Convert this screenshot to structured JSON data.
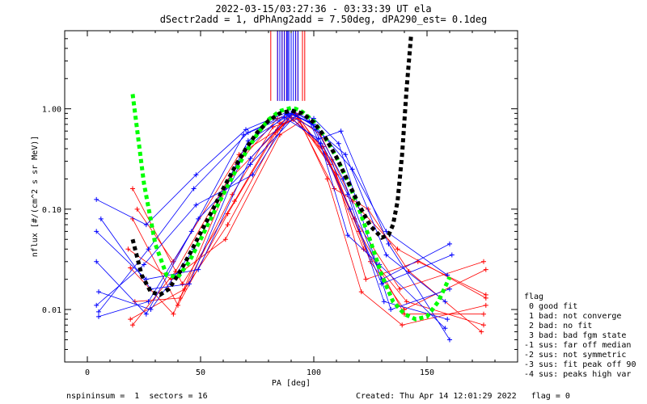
{
  "chart_data": {
    "type": "line",
    "title": "2022-03-15/03:27:36 - 03:33:39 UT ela",
    "subtitle": "dSectr2add = 1, dPhAng2add = 7.50deg, dPA290_est=    0.1deg",
    "xlabel": "PA [deg]",
    "ylabel": "nflux [#/(cm^2 s sr MeV)]",
    "xlim": [
      -10,
      190
    ],
    "ylim": [
      0.003,
      6
    ],
    "yscale": "log",
    "x_ticks": [
      0,
      50,
      100,
      150
    ],
    "x_tick_labels": [
      "0",
      "50",
      "100",
      "150"
    ],
    "y_ticks": [
      0.01,
      0.1,
      1.0
    ],
    "y_tick_labels": [
      "0.01",
      "0.10",
      "1.00"
    ],
    "colors": {
      "series_red": "#ff0000",
      "series_blue": "#0000ff",
      "fit_green": "#00ff00",
      "fit_black": "#000000",
      "axis": "#000000"
    },
    "series": [
      {
        "color": "#ff0000",
        "x": [
          20,
          42,
          65,
          85,
          92,
          105,
          120,
          140,
          175
        ],
        "values": [
          0.16,
          0.018,
          0.12,
          0.72,
          0.9,
          0.36,
          0.06,
          0.009,
          0.009
        ]
      },
      {
        "color": "#ff0000",
        "x": [
          20,
          40,
          62,
          84,
          93,
          107,
          122,
          141,
          175
        ],
        "values": [
          0.08,
          0.011,
          0.09,
          0.62,
          0.86,
          0.28,
          0.04,
          0.012,
          0.007
        ]
      },
      {
        "color": "#ff0000",
        "x": [
          19,
          38,
          63,
          83,
          90,
          108,
          123,
          146,
          176
        ],
        "values": [
          0.026,
          0.009,
          0.2,
          0.58,
          0.82,
          0.31,
          0.02,
          0.03,
          0.014
        ]
      },
      {
        "color": "#ff0000",
        "x": [
          21,
          41,
          64,
          82,
          91,
          104,
          118,
          138,
          175
        ],
        "values": [
          0.012,
          0.013,
          0.14,
          0.66,
          0.78,
          0.42,
          0.08,
          0.016,
          0.03
        ]
      },
      {
        "color": "#ff0000",
        "x": [
          18,
          37,
          61,
          85,
          94,
          106,
          121,
          139,
          176
        ],
        "values": [
          0.04,
          0.02,
          0.05,
          0.55,
          0.74,
          0.2,
          0.015,
          0.007,
          0.011
        ]
      },
      {
        "color": "#ff0000",
        "x": [
          20,
          39,
          66,
          84,
          92,
          109,
          124,
          142,
          174
        ],
        "values": [
          0.007,
          0.024,
          0.28,
          0.8,
          0.88,
          0.16,
          0.1,
          0.024,
          0.006
        ]
      },
      {
        "color": "#ff0000",
        "x": [
          19,
          43,
          62,
          86,
          93,
          103,
          117,
          137,
          176
        ],
        "values": [
          0.008,
          0.016,
          0.07,
          0.7,
          0.8,
          0.55,
          0.12,
          0.04,
          0.013
        ]
      },
      {
        "color": "#ff0000",
        "x": [
          22,
          38,
          67,
          85,
          91,
          110,
          125,
          140,
          176
        ],
        "values": [
          0.1,
          0.03,
          0.35,
          0.64,
          0.92,
          0.22,
          0.03,
          0.01,
          0.025
        ]
      },
      {
        "color": "#0000ff",
        "x": [
          4,
          26,
          48,
          70,
          88,
          100,
          113,
          130,
          160
        ],
        "values": [
          0.125,
          0.07,
          0.22,
          0.62,
          0.92,
          0.7,
          0.2,
          0.02,
          0.045
        ]
      },
      {
        "color": "#0000ff",
        "x": [
          5,
          28,
          47,
          71,
          89,
          101,
          114,
          132,
          158
        ],
        "values": [
          0.015,
          0.01,
          0.04,
          0.48,
          0.86,
          0.62,
          0.35,
          0.035,
          0.012
        ]
      },
      {
        "color": "#0000ff",
        "x": [
          4,
          26,
          49,
          72,
          90,
          99,
          115,
          131,
          159
        ],
        "values": [
          0.06,
          0.02,
          0.025,
          0.32,
          0.9,
          0.72,
          0.14,
          0.012,
          0.008
        ]
      },
      {
        "color": "#0000ff",
        "x": [
          5,
          27,
          46,
          69,
          87,
          102,
          112,
          133,
          160
        ],
        "values": [
          0.0085,
          0.012,
          0.06,
          0.55,
          0.82,
          0.5,
          0.6,
          0.045,
          0.005
        ]
      },
      {
        "color": "#0000ff",
        "x": [
          4,
          25,
          48,
          73,
          91,
          98,
          116,
          130,
          161
        ],
        "values": [
          0.011,
          0.028,
          0.11,
          0.22,
          0.95,
          0.75,
          0.1,
          0.018,
          0.035
        ]
      },
      {
        "color": "#0000ff",
        "x": [
          6,
          28,
          45,
          70,
          88,
          103,
          115,
          129,
          158
        ],
        "values": [
          0.08,
          0.016,
          0.018,
          0.4,
          0.88,
          0.45,
          0.055,
          0.028,
          0.0065
        ]
      },
      {
        "color": "#0000ff",
        "x": [
          5,
          27,
          47,
          71,
          89,
          100,
          111,
          134,
          160
        ],
        "values": [
          0.0095,
          0.04,
          0.16,
          0.58,
          0.9,
          0.8,
          0.45,
          0.01,
          0.016
        ]
      },
      {
        "color": "#0000ff",
        "x": [
          4,
          26,
          49,
          72,
          92,
          101,
          117,
          132,
          159
        ],
        "values": [
          0.03,
          0.009,
          0.08,
          0.28,
          0.86,
          0.66,
          0.25,
          0.06,
          0.022
        ]
      }
    ],
    "fits": [
      {
        "color": "#00ff00",
        "style": "dotted",
        "x": [
          20,
          25,
          30,
          35,
          40,
          45,
          50,
          55,
          60,
          65,
          70,
          75,
          80,
          85,
          90,
          92,
          95,
          100,
          105,
          110,
          115,
          120,
          125,
          130,
          135,
          140,
          145,
          150,
          155,
          160
        ],
        "values": [
          1.4,
          0.18,
          0.045,
          0.022,
          0.021,
          0.03,
          0.05,
          0.085,
          0.14,
          0.23,
          0.37,
          0.56,
          0.78,
          0.95,
          1.02,
          1.0,
          0.93,
          0.75,
          0.52,
          0.33,
          0.19,
          0.1,
          0.048,
          0.022,
          0.012,
          0.009,
          0.008,
          0.0085,
          0.012,
          0.021
        ]
      },
      {
        "color": "#000000",
        "style": "dotted",
        "x": [
          20,
          24,
          28,
          32,
          36,
          40,
          45,
          50,
          55,
          60,
          65,
          70,
          75,
          80,
          85,
          90,
          95,
          100,
          105,
          110,
          115,
          120,
          125,
          130,
          133,
          135,
          137,
          139,
          141,
          143
        ],
        "values": [
          0.05,
          0.022,
          0.015,
          0.014,
          0.016,
          0.022,
          0.035,
          0.058,
          0.095,
          0.16,
          0.26,
          0.4,
          0.58,
          0.76,
          0.9,
          0.96,
          0.9,
          0.73,
          0.52,
          0.33,
          0.19,
          0.11,
          0.068,
          0.052,
          0.055,
          0.07,
          0.12,
          0.35,
          1.6,
          5.5
        ]
      }
    ],
    "spikes": {
      "red_x": [
        81,
        84,
        85,
        86,
        87,
        88,
        90,
        92,
        93,
        95,
        96
      ],
      "blue_x": [
        84,
        85,
        86,
        87,
        88,
        88.5,
        89,
        90,
        91,
        92,
        93
      ],
      "y_from": 1.2,
      "y_to": 6
    },
    "legend": {
      "placement": "right",
      "title": "flag",
      "entries": [
        " 0 good fit",
        " 1 bad: not converge",
        " 2 bad: no fit",
        " 3 bad: bad fgm state",
        "-1 sus: far off median",
        "-2 sus: not symmetric",
        "-3 sus: fit peak off 90",
        "-4 sus: peaks high var"
      ]
    },
    "footer": {
      "left": "nspininsum =  1  sectors = 16",
      "right": "Created: Thu Apr 14 12:01:29 2022   flag = 0"
    }
  }
}
